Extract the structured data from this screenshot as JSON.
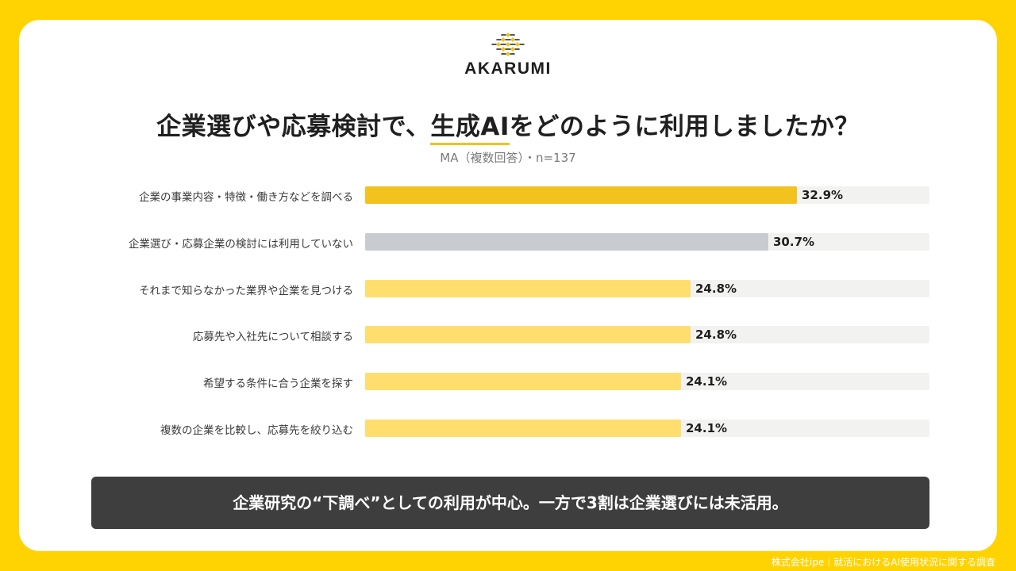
{
  "brand": {
    "name": "AKARUMI",
    "icon": "akarumi-lattice-icon",
    "accent_color": "#F2C21B",
    "background_color": "#FFD302"
  },
  "header": {
    "title_before": "企業選びや応募検討で、",
    "title_highlight": "生成AI",
    "title_after": "をどのように利用しましたか？",
    "subtitle": "MA（複数回答）・n=137"
  },
  "chart_data": {
    "type": "bar",
    "orientation": "horizontal",
    "categories": [
      "企業の事業内容・特徴・働き方などを調べる",
      "企業選び・応募企業の検討には利用していない",
      "それまで知らなかった業界や企業を見つける",
      "応募先や入社先について相談する",
      "希望する条件に合う企業を探す",
      "複数の企業を比較し、応募先を絞り込む"
    ],
    "values": [
      32.9,
      30.7,
      24.8,
      24.8,
      24.1,
      24.1
    ],
    "value_labels": [
      "32.9%",
      "30.7%",
      "24.8%",
      "24.8%",
      "24.1%",
      "24.1%"
    ],
    "bar_colors": [
      "#F3C21F",
      "#C8CCD0",
      "#FFDE6E",
      "#FFDE6E",
      "#FFDE6E",
      "#FFDE6E"
    ],
    "track_color": "#F2F2F0",
    "xlim": [
      0,
      43
    ],
    "grid": false,
    "legend": "none"
  },
  "summary": {
    "text": "企業研究の“下調べ”としての利用が中心。一方で3割は企業選びには未活用。"
  },
  "footer": {
    "source": "株式会社ipe｜就活におけるAI使用状況に関する調査"
  }
}
